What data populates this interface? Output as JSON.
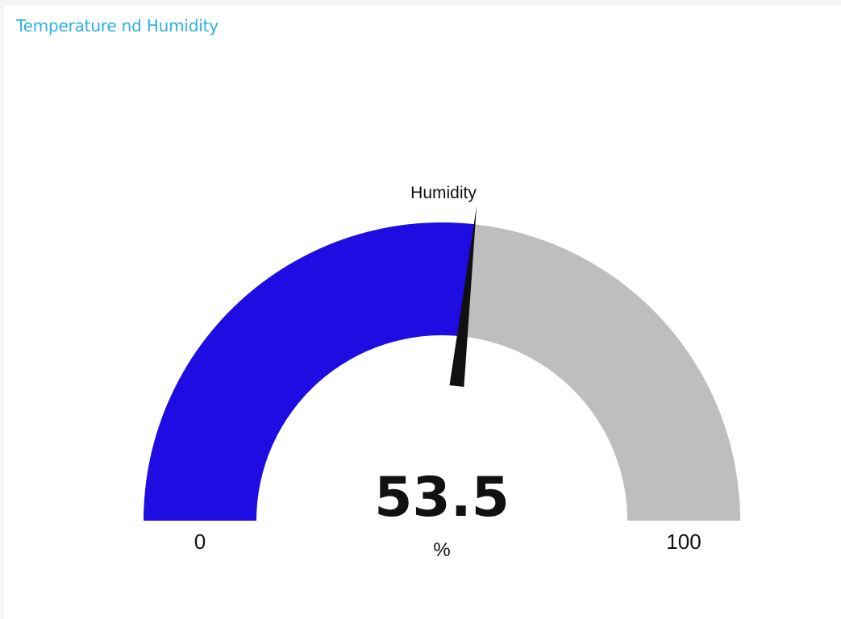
{
  "panel": {
    "title": "Temperature nd Humidity"
  },
  "gauge": {
    "label": "Humidity",
    "value": 53.5,
    "value_text": "53.5",
    "unit": "%",
    "min": 0,
    "max": 100,
    "min_label": "0",
    "max_label": "100"
  },
  "colors": {
    "title": "#2bb0e6",
    "filled_arc": "#1f0ce3",
    "remaining_arc": "#bebebe",
    "needle": "#111111"
  }
}
